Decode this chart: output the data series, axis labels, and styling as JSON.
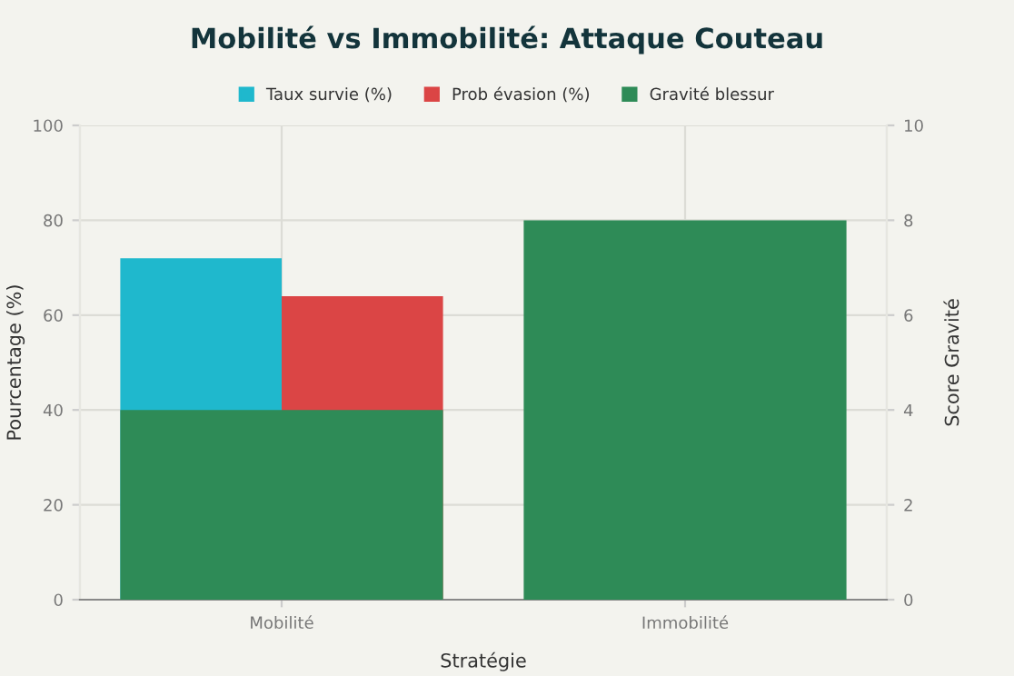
{
  "chart_data": {
    "type": "bar",
    "title": "Mobilité vs Immobilité: Attaque Couteau",
    "xlabel": "Stratégie",
    "ylabel": "Pourcentage (%)",
    "y2label": "Score Gravité",
    "categories": [
      "Mobilité",
      "Immobilité"
    ],
    "series": [
      {
        "name": "Taux survie (%)",
        "color": "#1fb8cd",
        "values": [
          72,
          null
        ]
      },
      {
        "name": "Prob évasion (%)",
        "color": "#db4545",
        "values": [
          64,
          null
        ]
      },
      {
        "name": "Gravité blessur",
        "color": "#2e8b57",
        "values": [
          4,
          8
        ],
        "axis": "y2"
      }
    ],
    "ylim": [
      0,
      100
    ],
    "yticks": [
      0,
      20,
      40,
      60,
      80,
      100
    ],
    "y2lim": [
      0,
      10
    ],
    "y2ticks": [
      0,
      2,
      4,
      6,
      8,
      10
    ],
    "grid": true,
    "legend": "top"
  }
}
